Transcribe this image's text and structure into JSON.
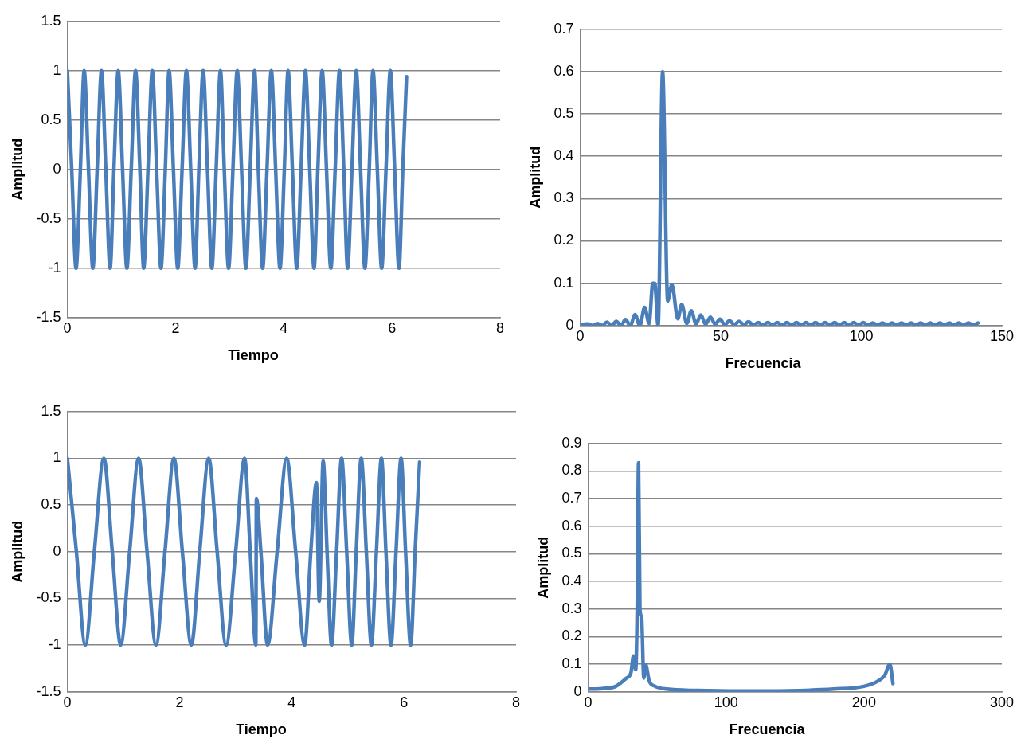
{
  "chart_data": [
    {
      "type": "line",
      "xlabel": "Tiempo",
      "ylabel": "Amplitud",
      "xlim": [
        0,
        8
      ],
      "xticks": [
        0,
        2,
        4,
        6,
        8
      ],
      "ylim": [
        -1.5,
        1.5
      ],
      "yticks": [
        -1.5,
        -1,
        -0.5,
        0,
        0.5,
        1,
        1.5
      ],
      "grid": "y",
      "x": [
        0,
        0.08,
        0.16,
        0.24,
        0.31,
        0.39,
        0.47,
        0.55,
        0.63,
        0.71,
        0.79,
        0.86,
        0.94,
        1.02,
        1.1,
        1.18,
        1.26,
        1.34,
        1.41,
        1.49,
        1.57,
        1.65,
        1.73,
        1.81,
        1.88,
        1.96,
        2.04,
        2.12,
        2.2,
        2.28,
        2.36,
        2.43,
        2.51,
        2.59,
        2.67,
        2.75,
        2.83,
        2.9,
        2.98,
        3.06,
        3.14,
        3.22,
        3.3,
        3.38,
        3.46,
        3.53,
        3.61,
        3.69,
        3.77,
        3.85,
        3.93,
        4.01,
        4.08,
        4.16,
        4.24,
        4.32,
        4.4,
        4.48,
        4.56,
        4.63,
        4.71,
        4.79,
        4.87,
        4.95,
        5.03,
        5.11,
        5.18,
        5.26,
        5.34,
        5.42,
        5.5,
        5.58,
        5.65,
        5.73,
        5.81,
        5.89,
        5.97,
        6.05,
        6.13,
        6.2,
        6.27
      ],
      "series": [
        {
          "color": "#4a7ebb",
          "values": [
            1,
            0,
            -1,
            0,
            1,
            0,
            -1,
            0,
            1,
            0,
            -1,
            0,
            1,
            0,
            -1,
            0,
            1,
            0,
            -1,
            0,
            1,
            0,
            -1,
            0,
            1,
            0,
            -1,
            0,
            1,
            0,
            -1,
            0,
            1,
            0,
            -1,
            0,
            1,
            0,
            -1,
            0,
            1,
            0,
            -1,
            0,
            1,
            0,
            -1,
            0,
            1,
            0,
            -1,
            0,
            1,
            0,
            -1,
            0,
            1,
            0,
            -1,
            0,
            1,
            0,
            -1,
            0,
            1,
            0,
            -1,
            0,
            1,
            0,
            -1,
            0,
            1,
            0,
            -1,
            0,
            1,
            0,
            -1,
            0,
            0.94
          ]
        }
      ]
    },
    {
      "type": "line",
      "xlabel": "Frecuencia",
      "ylabel": "Amplitud",
      "xlim": [
        0,
        150
      ],
      "xticks": [
        0,
        50,
        100,
        150
      ],
      "ylim": [
        0,
        0.7
      ],
      "yticks": [
        0,
        0.1,
        0.2,
        0.3,
        0.4,
        0.5,
        0.6,
        0.7
      ],
      "grid": "y",
      "x": [
        0,
        2.6,
        4.3,
        6.1,
        7.8,
        9.5,
        11.2,
        12.8,
        14.5,
        16.1,
        17.8,
        19.5,
        21.2,
        22.9,
        24.5,
        25.8,
        26.5,
        27.7,
        29.3,
        31.1,
        32.6,
        34.7,
        36.1,
        37.9,
        39.5,
        41.2,
        42.9,
        44.6,
        46.3,
        48.0,
        49.7,
        51.4,
        53.1,
        54.8,
        56.5,
        58.2,
        59.9,
        61.6,
        63.3,
        65.0,
        66.7,
        68.4,
        70.1,
        71.8,
        73.5,
        75.2,
        76.9,
        78.6,
        80.3,
        82.0,
        83.7,
        85.4,
        87.1,
        88.8,
        90.5,
        92.2,
        93.9,
        95.6,
        97.3,
        99.0,
        100.7,
        102.4,
        104.1,
        105.8,
        107.5,
        109.2,
        110.9,
        112.6,
        114.3,
        116.0,
        117.7,
        119.4,
        121.1,
        122.8,
        124.5,
        126.2,
        127.9,
        129.6,
        131.3,
        133.0,
        134.7,
        136.4,
        138.1,
        139.8,
        141.5
      ],
      "series": [
        {
          "color": "#4a7ebb",
          "values": [
            0.002,
            0.004,
            0,
            0.005,
            0,
            0.008,
            0,
            0.01,
            0,
            0.014,
            0,
            0.026,
            0,
            0.043,
            0.005,
            0.1,
            0.1,
            0,
            0.6,
            0.058,
            0.097,
            0.016,
            0.05,
            0.005,
            0.035,
            0.004,
            0.025,
            0.003,
            0.02,
            0.003,
            0.015,
            0.002,
            0.012,
            0.002,
            0.01,
            0.002,
            0.009,
            0.001,
            0.007,
            0.001,
            0.007,
            0.001,
            0.007,
            0.001,
            0.007,
            0.001,
            0.007,
            0.001,
            0.007,
            0.001,
            0.007,
            0.001,
            0.007,
            0.001,
            0.007,
            0.001,
            0.007,
            0.001,
            0.007,
            0.001,
            0.007,
            0.001,
            0.006,
            0.001,
            0.006,
            0.001,
            0.006,
            0.001,
            0.006,
            0.001,
            0.006,
            0.001,
            0.006,
            0.001,
            0.006,
            0.001,
            0.006,
            0.001,
            0.006,
            0.001,
            0.006,
            0.001,
            0.006,
            0.001,
            0.006
          ]
        }
      ]
    },
    {
      "type": "line",
      "xlabel": "Tiempo",
      "ylabel": "Amplitud",
      "xlim": [
        0,
        8
      ],
      "xticks": [
        0,
        2,
        4,
        6,
        8
      ],
      "ylim": [
        -1.5,
        1.5
      ],
      "yticks": [
        -1.5,
        -1,
        -0.5,
        0,
        0.5,
        1,
        1.5
      ],
      "grid": "y",
      "x": [
        0,
        0.16,
        0.32,
        0.48,
        0.65,
        0.8,
        0.95,
        1.11,
        1.27,
        1.42,
        1.58,
        1.74,
        1.9,
        2.05,
        2.21,
        2.36,
        2.52,
        2.67,
        2.83,
        3.0,
        3.16,
        3.26,
        3.36,
        3.37,
        3.45,
        3.57,
        3.74,
        3.91,
        4.07,
        4.23,
        4.34,
        4.44,
        4.49,
        4.56,
        4.63,
        4.71,
        4.8,
        4.89,
        4.98,
        5.07,
        5.15,
        5.24,
        5.33,
        5.42,
        5.51,
        5.6,
        5.68,
        5.77,
        5.86,
        5.95,
        6.03,
        6.12,
        6.2,
        6.28
      ],
      "series": [
        {
          "color": "#4a7ebb",
          "values": [
            1,
            0,
            -1,
            0,
            1,
            0,
            -1,
            0,
            1,
            0,
            -1,
            0,
            1,
            0,
            -1,
            0,
            1,
            0,
            -1,
            0,
            1,
            0,
            -1,
            0.57,
            0,
            -1,
            0,
            1,
            0,
            -1,
            0,
            0.74,
            -0.53,
            0.97,
            0,
            -1,
            0,
            1,
            0,
            -1,
            0,
            1,
            0,
            -1,
            0,
            1,
            0,
            -1,
            0,
            1,
            0,
            -1,
            0,
            0.96
          ]
        }
      ]
    },
    {
      "type": "line",
      "xlabel": "Frecuencia",
      "ylabel": "Amplitud",
      "xlim": [
        0,
        300
      ],
      "xticks": [
        0,
        100,
        200,
        300
      ],
      "ylim": [
        0,
        0.9
      ],
      "yticks": [
        0,
        0.1,
        0.2,
        0.3,
        0.4,
        0.5,
        0.6,
        0.7,
        0.8,
        0.9
      ],
      "grid": "y",
      "x": [
        0,
        10,
        20,
        27.8,
        31,
        32.8,
        34.4,
        35.5,
        36.5,
        37.5,
        38.7,
        40.3,
        41.6,
        44.2,
        48.6,
        57,
        79,
        112,
        145,
        178,
        200,
        210.5,
        215,
        218.8,
        221
      ],
      "series": [
        {
          "color": "#4a7ebb",
          "values": [
            0.01,
            0.012,
            0.02,
            0.05,
            0.07,
            0.13,
            0.08,
            0.3,
            0.83,
            0.3,
            0.27,
            0.05,
            0.1,
            0.04,
            0.02,
            0.01,
            0.005,
            0.003,
            0.004,
            0.01,
            0.02,
            0.04,
            0.06,
            0.1,
            0.03
          ]
        }
      ]
    }
  ]
}
